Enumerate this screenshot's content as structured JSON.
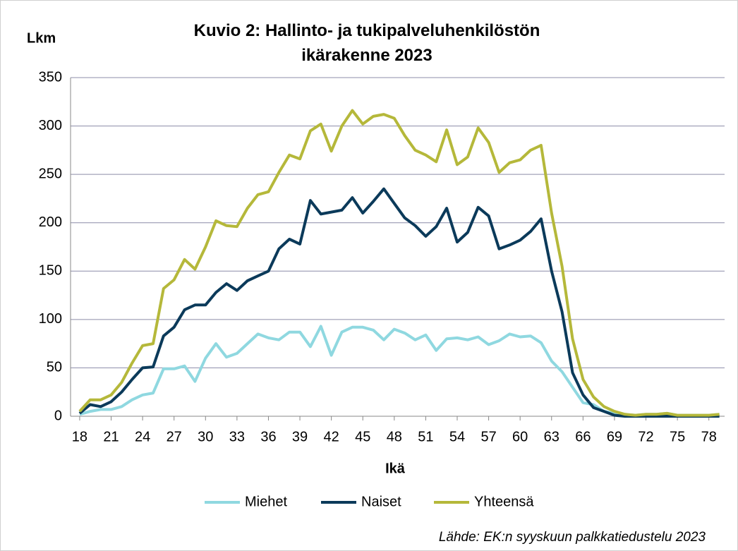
{
  "chart_data": {
    "type": "line",
    "title": "Kuvio 2: Hallinto- ja tukipalveluhenkilöstön ikärakenne 2023",
    "y_label": "Lkm",
    "x_label": "Ikä",
    "source": "Lähde:  EK:n syyskuun palkkatiedustelu  2023",
    "x": [
      18,
      19,
      20,
      21,
      22,
      23,
      24,
      25,
      26,
      27,
      28,
      29,
      30,
      31,
      32,
      33,
      34,
      35,
      36,
      37,
      38,
      39,
      40,
      41,
      42,
      43,
      44,
      45,
      46,
      47,
      48,
      49,
      50,
      51,
      52,
      53,
      54,
      55,
      56,
      57,
      58,
      59,
      60,
      61,
      62,
      63,
      64,
      65,
      66,
      67,
      68,
      69,
      70,
      71,
      72,
      73,
      74,
      75,
      76,
      77,
      78,
      79
    ],
    "series": [
      {
        "name": "Miehet",
        "color": "#8fd8e0",
        "values": [
          2,
          5,
          7,
          7,
          10,
          17,
          22,
          24,
          49,
          49,
          52,
          36,
          60,
          75,
          61,
          65,
          75,
          85,
          81,
          79,
          87,
          87,
          72,
          93,
          63,
          87,
          92,
          92,
          89,
          79,
          90,
          86,
          79,
          84,
          68,
          80,
          81,
          79,
          82,
          74,
          78,
          85,
          82,
          83,
          76,
          57,
          46,
          30,
          14,
          12,
          5,
          3,
          2,
          1,
          2,
          2,
          3,
          1,
          1,
          1,
          1,
          2
        ]
      },
      {
        "name": "Naiset",
        "color": "#0b3a5a",
        "values": [
          3,
          12,
          10,
          15,
          25,
          38,
          50,
          51,
          83,
          92,
          110,
          115,
          115,
          128,
          137,
          130,
          140,
          145,
          150,
          173,
          183,
          178,
          223,
          209,
          211,
          213,
          226,
          210,
          222,
          235,
          220,
          205,
          197,
          186,
          196,
          215,
          180,
          190,
          216,
          207,
          173,
          177,
          182,
          191,
          204,
          150,
          108,
          45,
          22,
          9,
          5,
          1,
          0,
          0,
          0,
          0,
          0,
          0,
          0,
          0,
          0,
          0
        ]
      },
      {
        "name": "Yhteensä",
        "color": "#b5b83a",
        "values": [
          5,
          17,
          17,
          22,
          35,
          55,
          73,
          75,
          132,
          141,
          162,
          152,
          175,
          202,
          197,
          196,
          215,
          229,
          232,
          252,
          270,
          266,
          295,
          302,
          274,
          300,
          316,
          302,
          310,
          312,
          308,
          290,
          275,
          270,
          263,
          296,
          260,
          268,
          298,
          283,
          252,
          262,
          265,
          275,
          280,
          210,
          155,
          80,
          38,
          20,
          10,
          5,
          2,
          1,
          2,
          2,
          3,
          1,
          1,
          1,
          1,
          2
        ]
      }
    ],
    "xlim": [
      17.13,
      79.5
    ],
    "xticks": [
      18,
      21,
      24,
      27,
      30,
      33,
      36,
      39,
      42,
      45,
      48,
      51,
      54,
      57,
      60,
      63,
      66,
      69,
      72,
      75,
      78
    ],
    "ylim": [
      0,
      350
    ],
    "yticks": [
      0,
      50,
      100,
      150,
      200,
      250,
      300,
      350
    ],
    "grid": true
  }
}
